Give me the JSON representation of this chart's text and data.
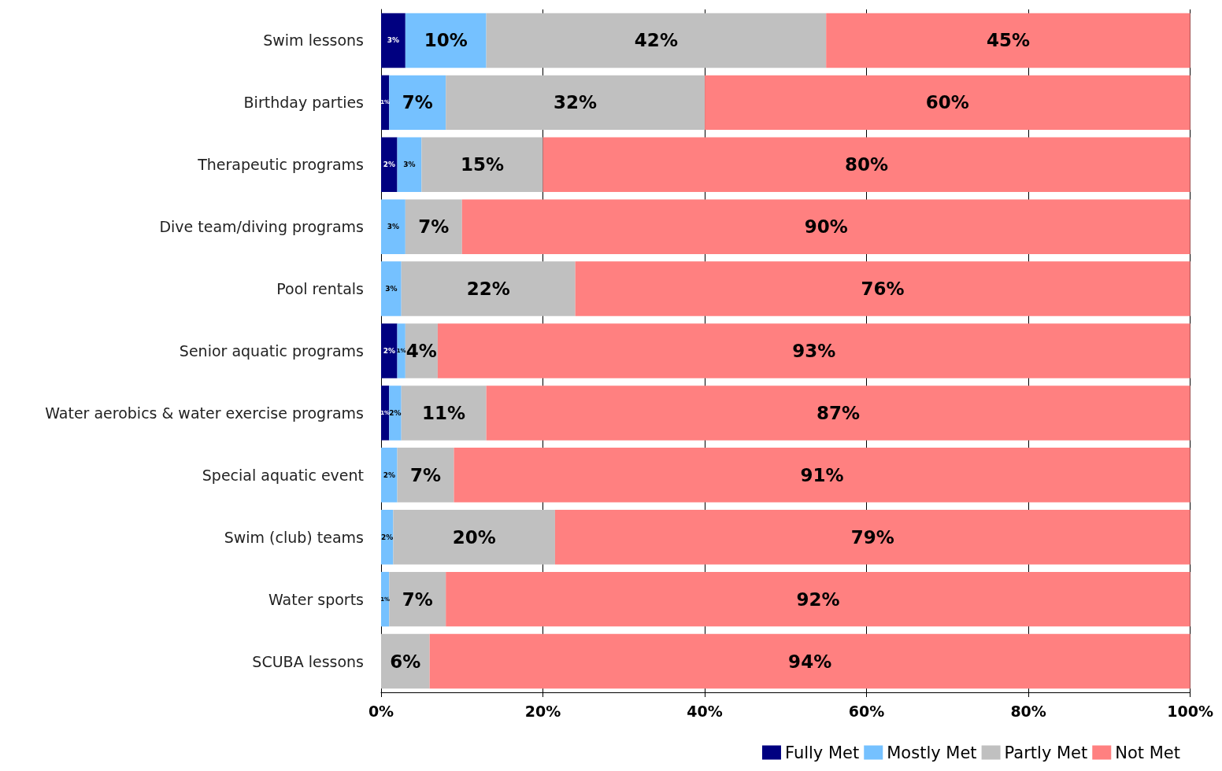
{
  "chart_data": {
    "type": "bar",
    "orientation": "horizontal",
    "stacked": true,
    "categories": [
      "Swim lessons",
      "Birthday parties",
      "Therapeutic programs",
      "Dive team/diving programs",
      "Pool rentals",
      "Senior aquatic programs",
      "Water aerobics & water exercise programs",
      "Special aquatic event",
      "Swim (club) teams",
      "Water sports",
      "SCUBA lessons"
    ],
    "series": [
      {
        "name": "Fully Met",
        "color": "#000080",
        "values": [
          3,
          1,
          2,
          null,
          null,
          2,
          1,
          null,
          null,
          null,
          null
        ],
        "value_labels": [
          "3%",
          "1%",
          "2%",
          null,
          null,
          "2%",
          "1%",
          null,
          null,
          null,
          null
        ]
      },
      {
        "name": "Mostly Met",
        "color": "#75c1ff",
        "values": [
          10,
          7,
          3,
          3,
          2.5,
          1,
          1.5,
          2,
          1.5,
          1,
          null
        ],
        "value_labels": [
          "10%",
          "7%",
          "3%",
          "3%",
          "3%",
          "1%",
          "2%",
          "2%",
          "2%",
          "1%",
          null
        ]
      },
      {
        "name": "Partly Met",
        "color": "#c0c0c0",
        "values": [
          42,
          32,
          15,
          7,
          21.5,
          4,
          10.5,
          7,
          20,
          7,
          6
        ],
        "value_labels": [
          "42%",
          "32%",
          "15%",
          "7%",
          "22%",
          "4%",
          "11%",
          "7%",
          "20%",
          "7%",
          "6%"
        ]
      },
      {
        "name": "Not Met",
        "color": "#ff8080",
        "values": [
          45,
          60,
          80,
          90,
          76,
          93,
          87,
          91,
          78.5,
          92,
          94
        ],
        "value_labels": [
          "45%",
          "60%",
          "80%",
          "90%",
          "76%",
          "93%",
          "87%",
          "91%",
          "79%",
          "92%",
          "94%"
        ]
      }
    ],
    "xlim": [
      0,
      100
    ],
    "xticks": [
      {
        "value": 0,
        "label": "0%"
      },
      {
        "value": 20,
        "label": "20%"
      },
      {
        "value": 40,
        "label": "40%"
      },
      {
        "value": 60,
        "label": "60%"
      },
      {
        "value": 80,
        "label": "80%"
      },
      {
        "value": 100,
        "label": "100%"
      }
    ],
    "data_labels": true,
    "grid": "x",
    "legend": "bottom right"
  }
}
